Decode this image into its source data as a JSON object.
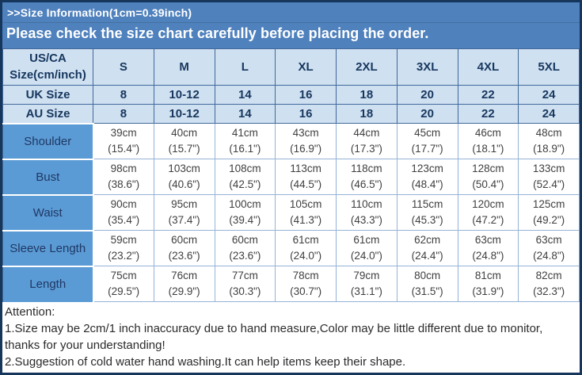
{
  "banner": {
    "line1": ">>Size Information(1cm=0.39inch)",
    "line2": "Please check the size chart carefully before placing the order."
  },
  "size_chart": {
    "corner_header": "US/CA\nSize(cm/inch)",
    "size_columns": [
      "S",
      "M",
      "L",
      "XL",
      "2XL",
      "3XL",
      "4XL",
      "5XL"
    ],
    "region_rows": [
      {
        "label": "UK Size",
        "values": [
          "8",
          "10-12",
          "14",
          "16",
          "18",
          "20",
          "22",
          "24"
        ]
      },
      {
        "label": "AU Size",
        "values": [
          "8",
          "10-12",
          "14",
          "16",
          "18",
          "20",
          "22",
          "24"
        ]
      }
    ],
    "measurement_rows": [
      {
        "label": "Shoulder",
        "cells": [
          {
            "cm": "39cm",
            "inch": "(15.4\")"
          },
          {
            "cm": "40cm",
            "inch": "(15.7\")"
          },
          {
            "cm": "41cm",
            "inch": "(16.1\")"
          },
          {
            "cm": "43cm",
            "inch": "(16.9\")"
          },
          {
            "cm": "44cm",
            "inch": "(17.3\")"
          },
          {
            "cm": "45cm",
            "inch": "(17.7\")"
          },
          {
            "cm": "46cm",
            "inch": "(18.1\")"
          },
          {
            "cm": "48cm",
            "inch": "(18.9\")"
          }
        ]
      },
      {
        "label": "Bust",
        "cells": [
          {
            "cm": "98cm",
            "inch": "(38.6\")"
          },
          {
            "cm": "103cm",
            "inch": "(40.6\")"
          },
          {
            "cm": "108cm",
            "inch": "(42.5\")"
          },
          {
            "cm": "113cm",
            "inch": "(44.5\")"
          },
          {
            "cm": "118cm",
            "inch": "(46.5\")"
          },
          {
            "cm": "123cm",
            "inch": "(48.4\")"
          },
          {
            "cm": "128cm",
            "inch": "(50.4\")"
          },
          {
            "cm": "133cm",
            "inch": "(52.4\")"
          }
        ]
      },
      {
        "label": "Waist",
        "cells": [
          {
            "cm": "90cm",
            "inch": "(35.4\")"
          },
          {
            "cm": "95cm",
            "inch": "(37.4\")"
          },
          {
            "cm": "100cm",
            "inch": "(39.4\")"
          },
          {
            "cm": "105cm",
            "inch": "(41.3\")"
          },
          {
            "cm": "110cm",
            "inch": "(43.3\")"
          },
          {
            "cm": "115cm",
            "inch": "(45.3\")"
          },
          {
            "cm": "120cm",
            "inch": "(47.2\")"
          },
          {
            "cm": "125cm",
            "inch": "(49.2\")"
          }
        ]
      },
      {
        "label": "Sleeve Length",
        "cells": [
          {
            "cm": "59cm",
            "inch": "(23.2\")"
          },
          {
            "cm": "60cm",
            "inch": "(23.6\")"
          },
          {
            "cm": "60cm",
            "inch": "(23.6\")"
          },
          {
            "cm": "61cm",
            "inch": "(24.0\")"
          },
          {
            "cm": "61cm",
            "inch": "(24.0\")"
          },
          {
            "cm": "62cm",
            "inch": "(24.4\")"
          },
          {
            "cm": "63cm",
            "inch": "(24.8\")"
          },
          {
            "cm": "63cm",
            "inch": "(24.8\")"
          }
        ]
      },
      {
        "label": "Length",
        "cells": [
          {
            "cm": "75cm",
            "inch": "(29.5\")"
          },
          {
            "cm": "76cm",
            "inch": "(29.9\")"
          },
          {
            "cm": "77cm",
            "inch": "(30.3\")"
          },
          {
            "cm": "78cm",
            "inch": "(30.7\")"
          },
          {
            "cm": "79cm",
            "inch": "(31.1\")"
          },
          {
            "cm": "80cm",
            "inch": "(31.5\")"
          },
          {
            "cm": "81cm",
            "inch": "(31.9\")"
          },
          {
            "cm": "82cm",
            "inch": "(32.3\")"
          }
        ]
      }
    ]
  },
  "attention": {
    "title": "Attention:",
    "lines": [
      "1.Size may be 2cm/1 inch inaccuracy due to hand measure,Color may be little different due to monitor,",
      "thanks for your understanding!",
      "2.Suggestion of cold water hand washing.It can help items keep their shape."
    ]
  },
  "colors": {
    "banner_bg": "#4f81bd",
    "outer_border": "#16365c",
    "header_cell_bg": "#cfe0f1",
    "header_text": "#17375e",
    "label_cell_bg": "#5b9bd5",
    "data_border": "#95b3d7",
    "data_text": "#3f3f3f"
  }
}
